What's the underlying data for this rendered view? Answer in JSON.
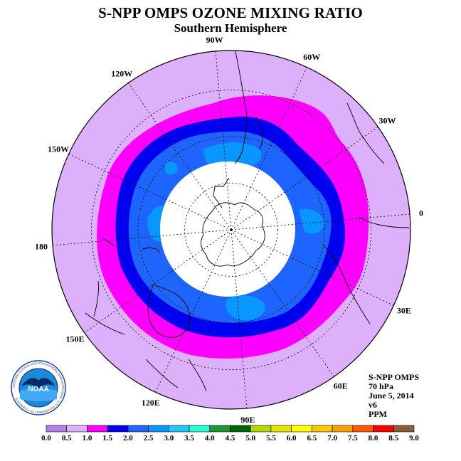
{
  "title": "S-NPP OMPS OZONE MIXING RATIO",
  "subtitle": "Southern Hemisphere",
  "longitude_labels": [
    "90W",
    "60W",
    "30W",
    "0",
    "30E",
    "60E",
    "90E",
    "120E",
    "150E",
    "180",
    "150W",
    "120W"
  ],
  "info": {
    "instrument": "S-NPP OMPS",
    "pressure": "70 hPa",
    "date": "June 5, 2014",
    "version": "v6",
    "units": "PPM"
  },
  "logo": {
    "text": "NOAA",
    "ring_text": "NATIONAL OCEANIC AND ATMOSPHERIC ADMINISTRATION · U.S. DEPARTMENT OF COMMERCE"
  },
  "colorbar": {
    "ticks": [
      "0.0",
      "0.5",
      "1.0",
      "1.5",
      "2.0",
      "2.5",
      "3.0",
      "3.5",
      "4.0",
      "4.5",
      "5.0",
      "5.5",
      "6.0",
      "6.5",
      "7.0",
      "7.5",
      "8.0",
      "8.5",
      "9.0"
    ],
    "colors": [
      "#b57ee8",
      "#dcb0fa",
      "#ff00ff",
      "#0000ee",
      "#1e64ff",
      "#0a96ff",
      "#1ec8ff",
      "#28ffd2",
      "#1e9632",
      "#006400",
      "#b4d700",
      "#e6e600",
      "#ffff00",
      "#ffc800",
      "#ffa000",
      "#ff5a00",
      "#ff0000",
      "#8c5a3c"
    ]
  },
  "map_colors": {
    "outer": "#dcb0fa",
    "magenta": "#ff00ff",
    "dark_blue": "#0000ee",
    "blue": "#1e64ff",
    "light_blue": "#0a96ff",
    "center": "#ffffff"
  }
}
